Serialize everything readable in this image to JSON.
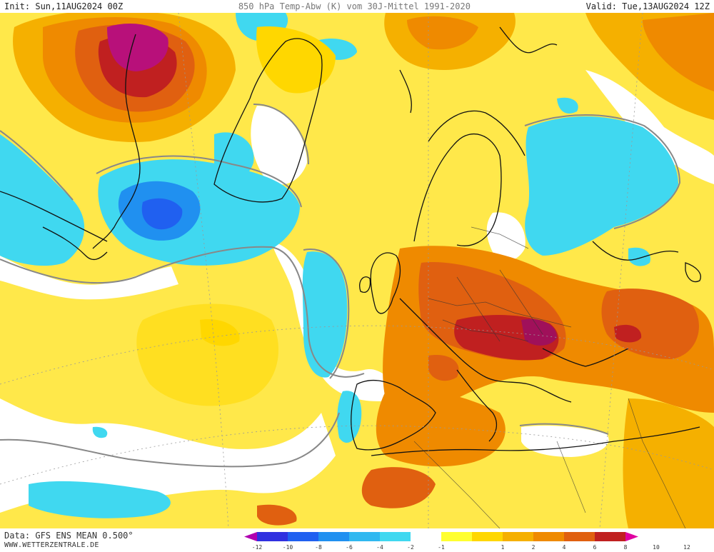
{
  "header": {
    "init_label": "Init: Sun,11AUG2024 00Z",
    "title": "850 hPa Temp-Abw (K) vom 30J-Mittel 1991-2020",
    "valid_label": "Valid: Tue,13AUG2024 12Z"
  },
  "footer": {
    "data_source": "Data: GFS ENS MEAN 0.500°",
    "website": "WWW.WETTERZENTRALE.DE"
  },
  "legend": {
    "unit": "K",
    "ticks": [
      "-12",
      "-10",
      "-8",
      "-6",
      "-4",
      "-2",
      "-1",
      "1",
      "2",
      "4",
      "6",
      "8",
      "10",
      "12"
    ],
    "colors": {
      "m12": "#b000b0",
      "m10": "#3030e0",
      "m8": "#2060f0",
      "m6": "#2090f0",
      "m4": "#30b8f0",
      "m2": "#40d8f0",
      "zero": "#ffffff",
      "p1": "#ffff30",
      "p2": "#ffd700",
      "p4": "#f5b000",
      "p6": "#ef8a00",
      "p8": "#e06010",
      "p10": "#c02020",
      "p12": "#e000a0"
    }
  }
}
